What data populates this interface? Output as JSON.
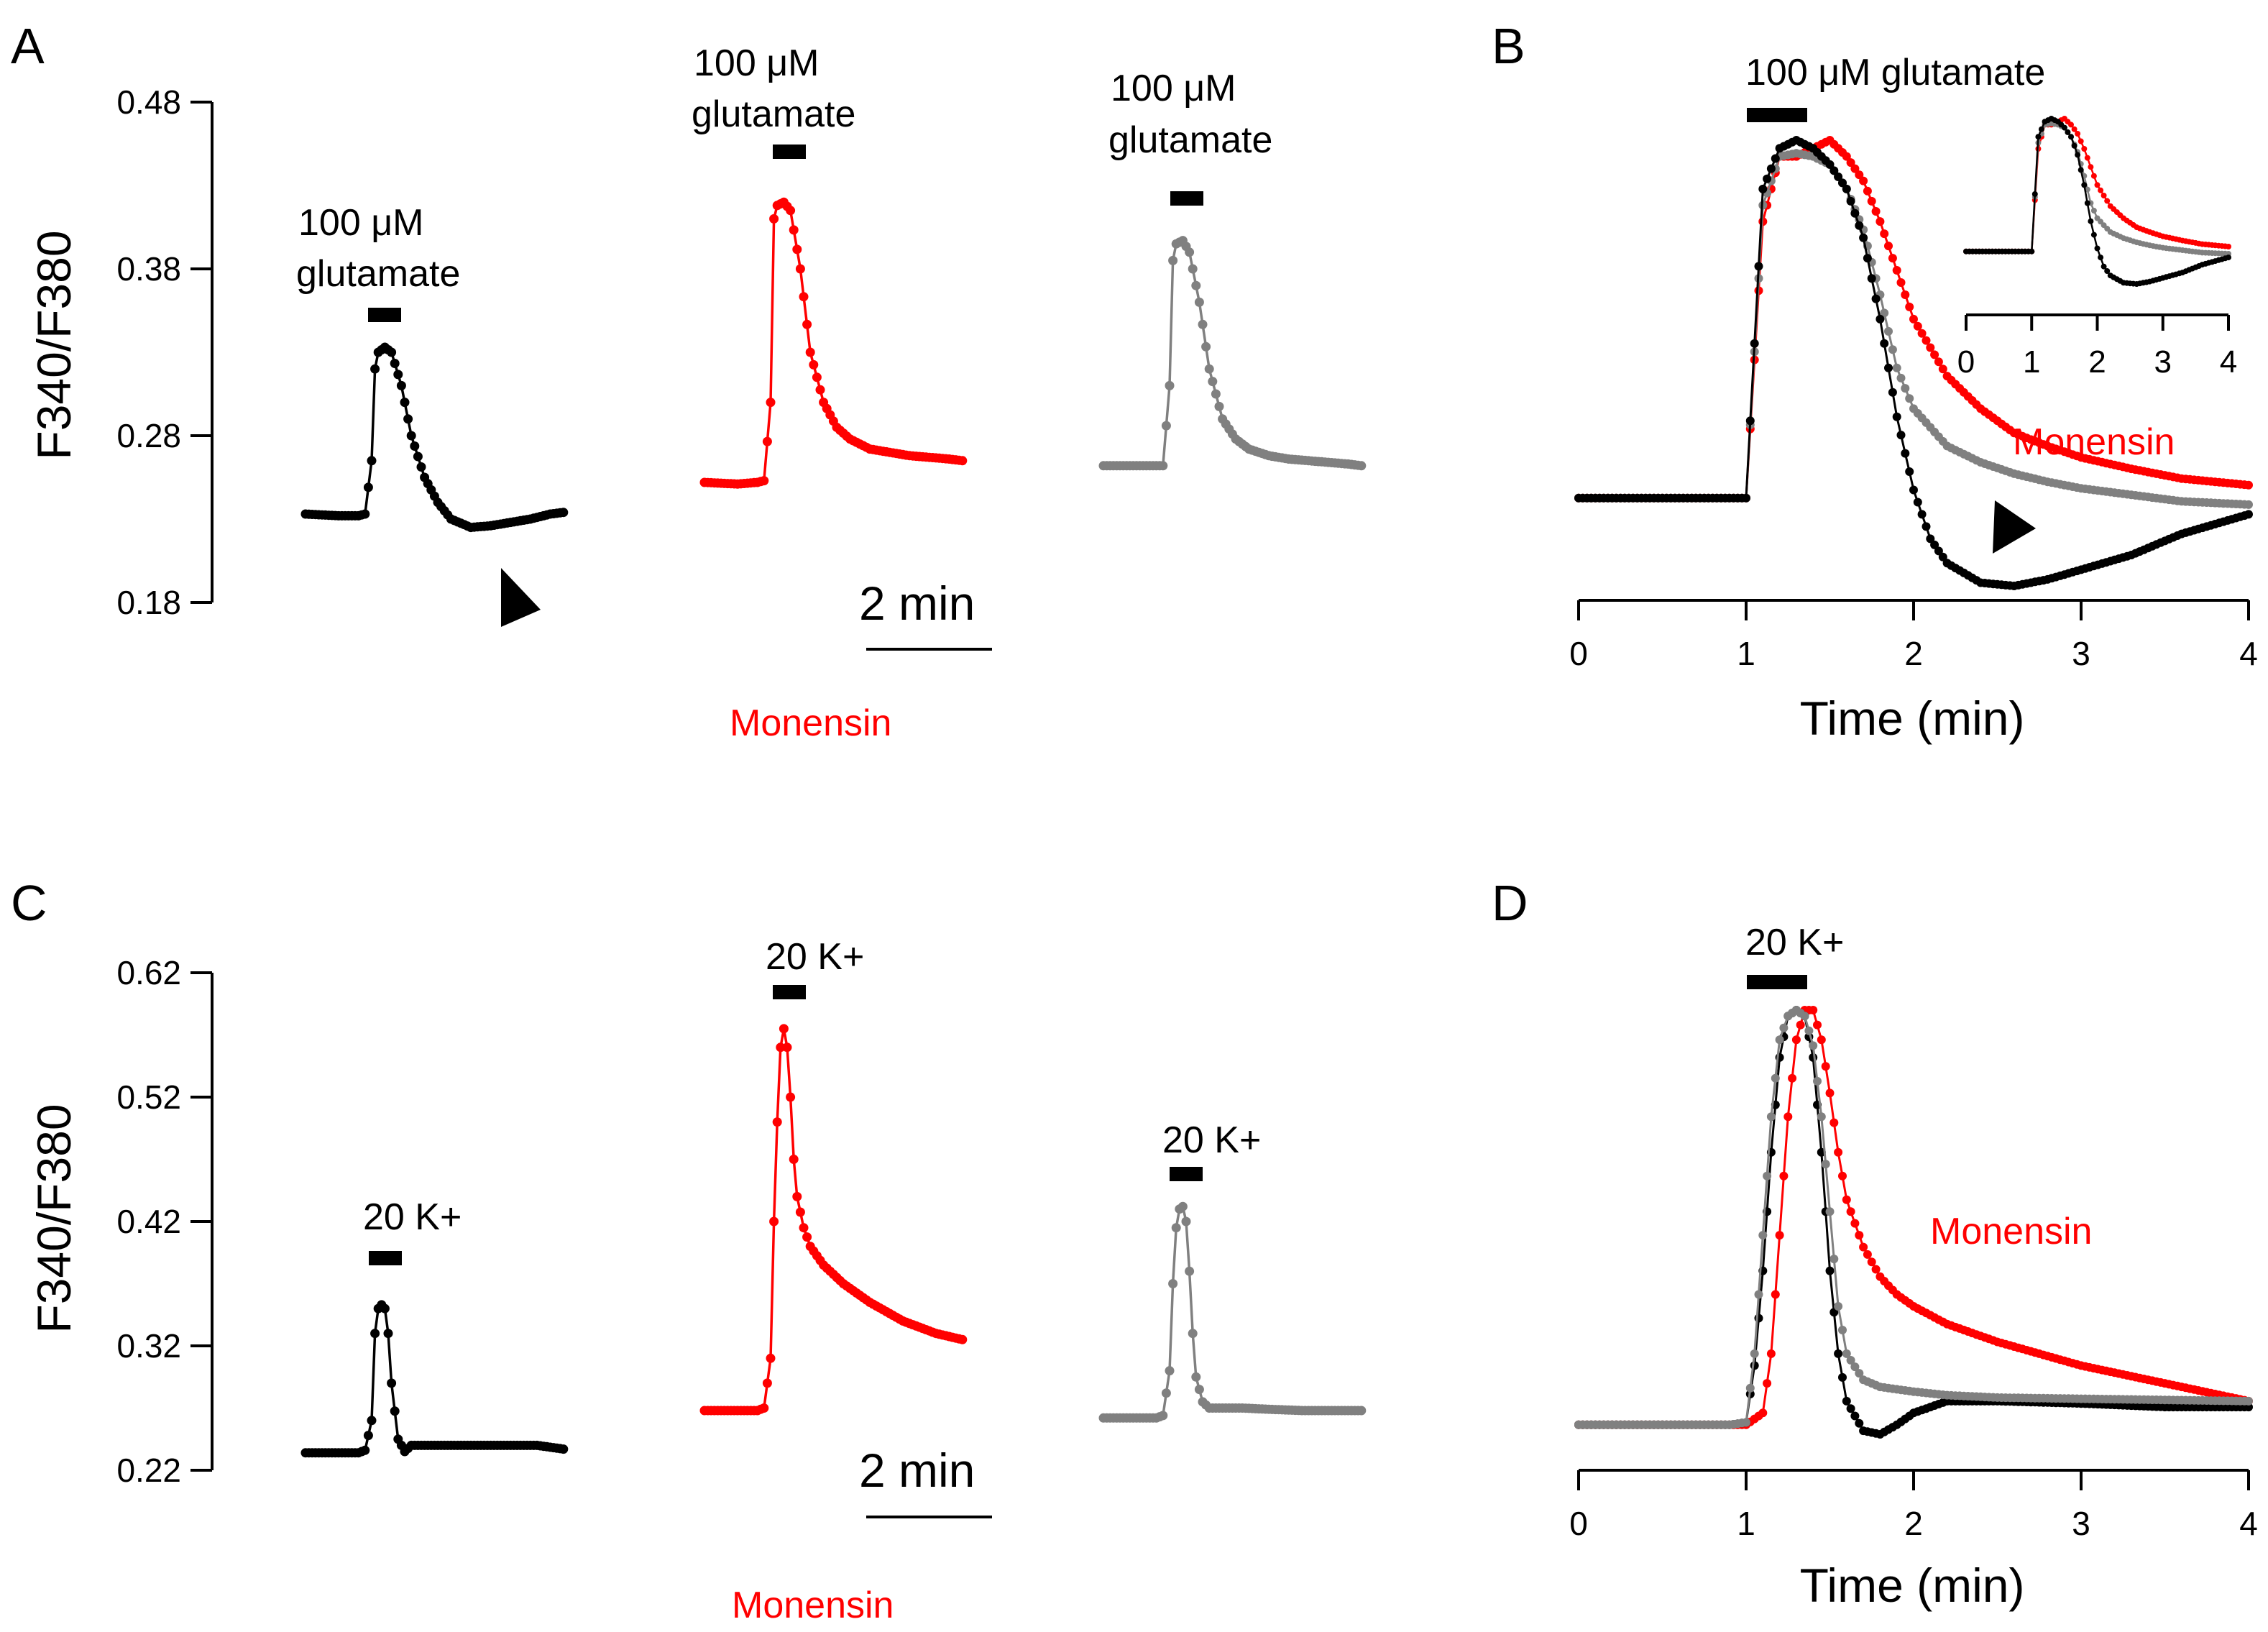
{
  "panels": {
    "A": {
      "label": "A"
    },
    "B": {
      "label": "B"
    },
    "C": {
      "label": "C"
    },
    "D": {
      "label": "D"
    }
  },
  "colors": {
    "control": "#000000",
    "monensin": "#ff0000",
    "gray": "#808080"
  },
  "labels": {
    "ylabel": "F340/F380",
    "glut": "100 μM glutamate",
    "glut_line1": "100 μM",
    "glut_line2": "glutamate",
    "k20": "20 K+",
    "monensin": "Monensin",
    "scale": "2 min",
    "time_axis": "Time (min)"
  },
  "chart_data": [
    {
      "panel": "A",
      "type": "line",
      "ylabel": "F340/F380",
      "yticks": [
        "0.18",
        "0.28",
        "0.38",
        "0.48"
      ],
      "ylim": [
        0.18,
        0.48
      ],
      "scale_bar": "2 min",
      "series": [
        {
          "color": "black",
          "t": [
            0,
            0.5,
            0.8,
            0.9,
            1.0,
            1.05,
            1.1,
            1.2,
            1.3,
            1.45,
            1.6,
            1.8,
            2.0,
            2.2,
            2.5,
            2.8,
            3.1,
            3.4,
            3.7,
            3.9
          ],
          "y": [
            0.233,
            0.232,
            0.232,
            0.233,
            0.265,
            0.32,
            0.33,
            0.333,
            0.33,
            0.31,
            0.28,
            0.255,
            0.24,
            0.23,
            0.225,
            0.226,
            0.228,
            0.23,
            0.233,
            0.234
          ]
        },
        {
          "color": "red",
          "name": "Monensin",
          "t": [
            0,
            0.5,
            0.8,
            0.9,
            1.0,
            1.05,
            1.1,
            1.2,
            1.3,
            1.45,
            1.6,
            1.8,
            2.0,
            2.2,
            2.5,
            2.8,
            3.1,
            3.4,
            3.7,
            3.9
          ],
          "y": [
            0.252,
            0.251,
            0.252,
            0.253,
            0.3,
            0.41,
            0.418,
            0.42,
            0.415,
            0.38,
            0.33,
            0.3,
            0.285,
            0.278,
            0.272,
            0.27,
            0.268,
            0.267,
            0.266,
            0.265
          ]
        },
        {
          "color": "gray",
          "t": [
            0,
            0.5,
            0.8,
            0.9,
            1.0,
            1.05,
            1.1,
            1.2,
            1.3,
            1.45,
            1.6,
            1.8,
            2.0,
            2.2,
            2.5,
            2.8,
            3.1,
            3.4,
            3.7,
            3.9
          ],
          "y": [
            0.262,
            0.262,
            0.262,
            0.262,
            0.31,
            0.385,
            0.395,
            0.397,
            0.39,
            0.36,
            0.32,
            0.29,
            0.278,
            0.272,
            0.268,
            0.266,
            0.265,
            0.264,
            0.263,
            0.262
          ]
        }
      ],
      "annotations": [
        "100 μM glutamate",
        "Monensin"
      ]
    },
    {
      "panel": "B",
      "type": "line",
      "xlabel": "Time (min)",
      "xticks": [
        "0",
        "1",
        "2",
        "3",
        "4"
      ],
      "xlim": [
        0,
        4
      ],
      "series": [
        {
          "color": "black",
          "x": [
            0,
            0.5,
            0.9,
            1.0,
            1.1,
            1.2,
            1.3,
            1.4,
            1.5,
            1.6,
            1.7,
            1.8,
            1.9,
            2.0,
            2.1,
            2.2,
            2.4,
            2.6,
            2.8,
            3.0,
            3.3,
            3.6,
            4.0
          ],
          "y": [
            0.23,
            0.23,
            0.23,
            0.23,
            0.42,
            0.445,
            0.45,
            0.445,
            0.435,
            0.42,
            0.39,
            0.34,
            0.28,
            0.235,
            0.205,
            0.19,
            0.178,
            0.176,
            0.18,
            0.186,
            0.195,
            0.208,
            0.22
          ]
        },
        {
          "color": "red",
          "name": "Monensin",
          "x": [
            0,
            0.5,
            0.9,
            1.0,
            1.1,
            1.2,
            1.3,
            1.4,
            1.5,
            1.6,
            1.7,
            1.8,
            1.9,
            2.0,
            2.2,
            2.4,
            2.6,
            2.8,
            3.0,
            3.3,
            3.6,
            4.0
          ],
          "y": [
            0.23,
            0.23,
            0.23,
            0.23,
            0.4,
            0.44,
            0.44,
            0.445,
            0.45,
            0.44,
            0.425,
            0.4,
            0.37,
            0.34,
            0.305,
            0.285,
            0.27,
            0.262,
            0.255,
            0.248,
            0.242,
            0.238
          ]
        },
        {
          "color": "gray",
          "x": [
            0,
            0.5,
            0.9,
            1.0,
            1.1,
            1.2,
            1.3,
            1.4,
            1.5,
            1.6,
            1.7,
            1.8,
            1.9,
            2.0,
            2.2,
            2.4,
            2.6,
            2.8,
            3.0,
            3.3,
            3.6,
            4.0
          ],
          "y": [
            0.23,
            0.23,
            0.23,
            0.23,
            0.41,
            0.44,
            0.442,
            0.44,
            0.435,
            0.42,
            0.395,
            0.355,
            0.31,
            0.285,
            0.262,
            0.252,
            0.245,
            0.24,
            0.236,
            0.232,
            0.228,
            0.226
          ]
        }
      ],
      "inset": {
        "xticks": [
          "0",
          "1",
          "2",
          "3",
          "4"
        ],
        "xlim": [
          0,
          4
        ]
      },
      "annotations": [
        "100 μM glutamate",
        "Monensin"
      ]
    },
    {
      "panel": "C",
      "type": "line",
      "ylabel": "F340/F380",
      "yticks": [
        "0.22",
        "0.32",
        "0.42",
        "0.52",
        "0.62"
      ],
      "ylim": [
        0.22,
        0.62
      ],
      "scale_bar": "2 min",
      "series": [
        {
          "color": "black",
          "t": [
            0,
            0.5,
            0.8,
            0.9,
            1.0,
            1.05,
            1.1,
            1.15,
            1.2,
            1.25,
            1.3,
            1.4,
            1.5,
            1.6,
            1.8,
            2.1,
            2.5,
            3.0,
            3.5,
            3.9
          ],
          "y": [
            0.234,
            0.234,
            0.234,
            0.236,
            0.26,
            0.33,
            0.35,
            0.353,
            0.35,
            0.33,
            0.29,
            0.245,
            0.235,
            0.24,
            0.24,
            0.24,
            0.24,
            0.24,
            0.24,
            0.237
          ]
        },
        {
          "color": "red",
          "name": "Monensin",
          "t": [
            0,
            0.5,
            0.8,
            0.9,
            1.0,
            1.05,
            1.1,
            1.15,
            1.2,
            1.25,
            1.3,
            1.35,
            1.4,
            1.5,
            1.6,
            1.8,
            2.1,
            2.5,
            3.0,
            3.5,
            3.9
          ],
          "y": [
            0.268,
            0.268,
            0.268,
            0.27,
            0.31,
            0.42,
            0.5,
            0.56,
            0.575,
            0.56,
            0.52,
            0.47,
            0.44,
            0.415,
            0.4,
            0.385,
            0.37,
            0.355,
            0.34,
            0.33,
            0.325
          ]
        },
        {
          "color": "gray",
          "t": [
            0,
            0.5,
            0.8,
            0.9,
            1.0,
            1.05,
            1.1,
            1.15,
            1.2,
            1.25,
            1.3,
            1.35,
            1.4,
            1.5,
            1.6,
            1.8,
            2.1,
            2.5,
            3.0,
            3.5,
            3.9
          ],
          "y": [
            0.262,
            0.262,
            0.262,
            0.264,
            0.3,
            0.37,
            0.415,
            0.43,
            0.432,
            0.42,
            0.38,
            0.33,
            0.295,
            0.275,
            0.27,
            0.27,
            0.27,
            0.269,
            0.268,
            0.268,
            0.268
          ]
        }
      ],
      "annotations": [
        "20 K+",
        "Monensin"
      ]
    },
    {
      "panel": "D",
      "type": "line",
      "xlabel": "Time (min)",
      "xticks": [
        "0",
        "1",
        "2",
        "3",
        "4"
      ],
      "xlim": [
        0,
        4
      ],
      "series": [
        {
          "color": "black",
          "x": [
            0,
            0.5,
            0.9,
            1.0,
            1.05,
            1.1,
            1.15,
            1.2,
            1.25,
            1.3,
            1.35,
            1.4,
            1.45,
            1.5,
            1.55,
            1.6,
            1.7,
            1.8,
            1.9,
            2.0,
            2.2,
            2.5,
            3.0,
            3.5,
            4.0
          ],
          "y": [
            0.24,
            0.24,
            0.24,
            0.242,
            0.29,
            0.37,
            0.47,
            0.55,
            0.585,
            0.59,
            0.585,
            0.55,
            0.47,
            0.37,
            0.3,
            0.26,
            0.235,
            0.232,
            0.24,
            0.25,
            0.26,
            0.26,
            0.258,
            0.255,
            0.255
          ]
        },
        {
          "color": "red",
          "name": "Monensin",
          "x": [
            0,
            0.5,
            0.9,
            1.0,
            1.1,
            1.15,
            1.2,
            1.25,
            1.3,
            1.35,
            1.4,
            1.45,
            1.5,
            1.55,
            1.6,
            1.7,
            1.8,
            1.9,
            2.0,
            2.2,
            2.5,
            3.0,
            3.5,
            4.0
          ],
          "y": [
            0.24,
            0.24,
            0.24,
            0.24,
            0.25,
            0.3,
            0.4,
            0.5,
            0.565,
            0.59,
            0.59,
            0.565,
            0.52,
            0.47,
            0.43,
            0.39,
            0.365,
            0.35,
            0.34,
            0.325,
            0.31,
            0.29,
            0.275,
            0.26
          ]
        },
        {
          "color": "gray",
          "x": [
            0,
            0.5,
            0.9,
            1.0,
            1.05,
            1.1,
            1.15,
            1.2,
            1.25,
            1.3,
            1.35,
            1.4,
            1.45,
            1.5,
            1.55,
            1.6,
            1.7,
            1.8,
            1.9,
            2.0,
            2.2,
            2.5,
            3.0,
            3.5,
            4.0
          ],
          "y": [
            0.24,
            0.24,
            0.24,
            0.242,
            0.3,
            0.4,
            0.5,
            0.565,
            0.585,
            0.59,
            0.585,
            0.56,
            0.5,
            0.42,
            0.34,
            0.3,
            0.278,
            0.272,
            0.27,
            0.268,
            0.265,
            0.263,
            0.262,
            0.261,
            0.26
          ]
        }
      ],
      "annotations": [
        "20 K+",
        "Monensin"
      ]
    }
  ]
}
